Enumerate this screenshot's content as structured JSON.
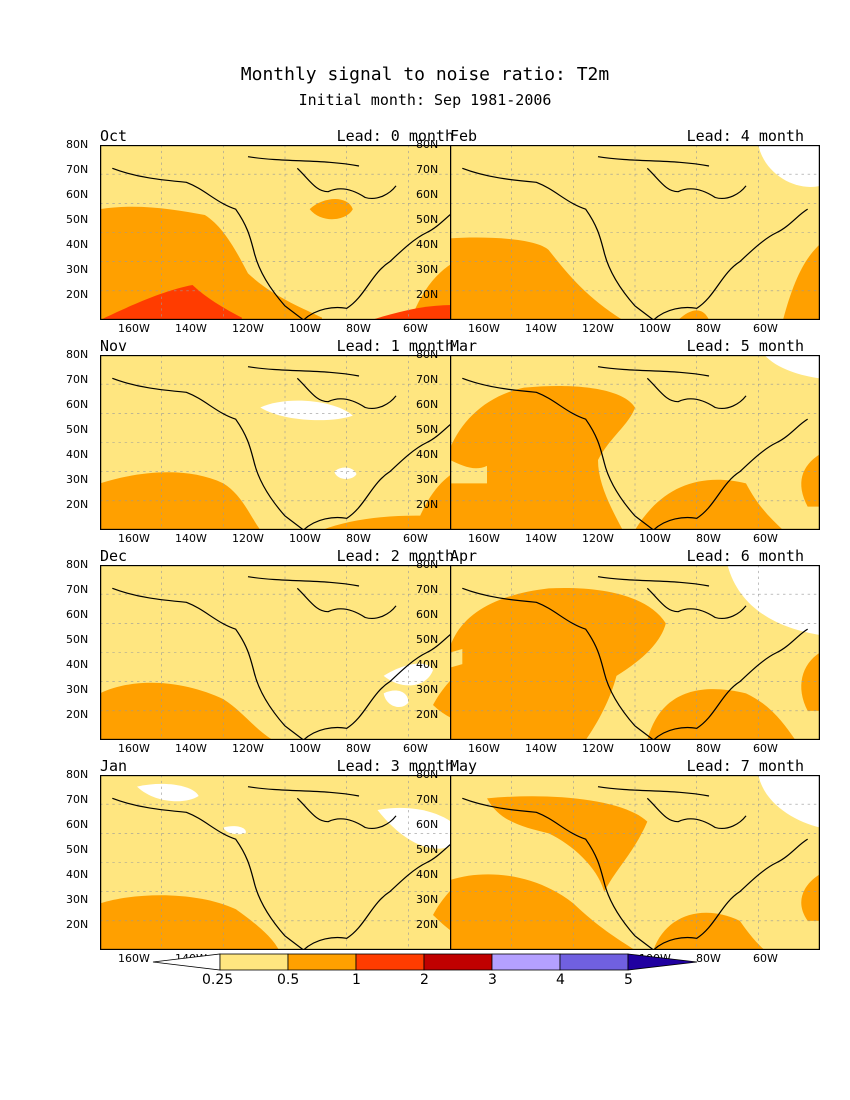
{
  "title": "Monthly signal to noise ratio: T2m",
  "subtitle": "Initial month: Sep 1981-2006",
  "lat_labels": [
    "80N",
    "70N",
    "60N",
    "50N",
    "40N",
    "30N",
    "20N"
  ],
  "lon_labels": [
    "160W",
    "140W",
    "120W",
    "100W",
    "80W",
    "60W"
  ],
  "panels": [
    {
      "month": "Oct",
      "lead": "Lead: 0 month"
    },
    {
      "month": "Feb",
      "lead": "Lead: 4 month"
    },
    {
      "month": "Nov",
      "lead": "Lead: 1 month"
    },
    {
      "month": "Mar",
      "lead": "Lead: 5 month"
    },
    {
      "month": "Dec",
      "lead": "Lead: 2 month"
    },
    {
      "month": "Apr",
      "lead": "Lead: 6 month"
    },
    {
      "month": "Jan",
      "lead": "Lead: 3 month"
    },
    {
      "month": "May",
      "lead": "Lead: 7 month"
    }
  ],
  "colorbar": {
    "labels": [
      "0.25",
      "0.5",
      "1",
      "2",
      "3",
      "4",
      "5"
    ],
    "colors": [
      "#ffffff",
      "#ffe680",
      "#ffa000",
      "#ff3c00",
      "#c00000",
      "#b4a0ff",
      "#7060e0",
      "#2000a0"
    ]
  }
}
